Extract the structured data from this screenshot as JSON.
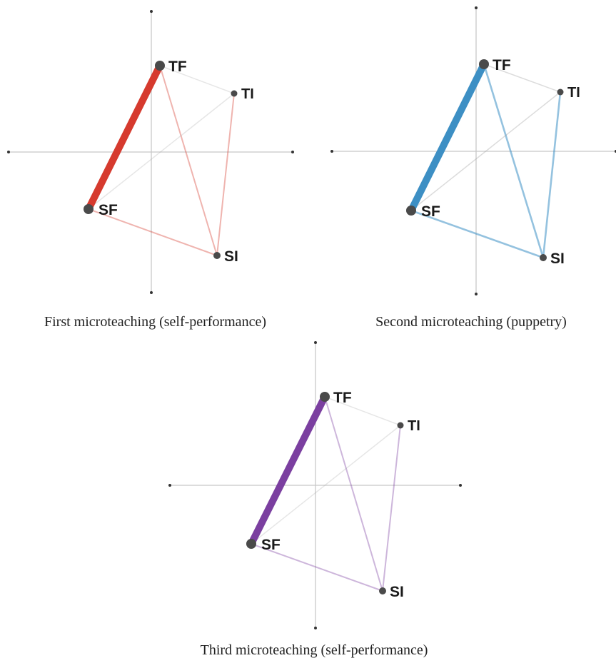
{
  "nodes": [
    {
      "id": "TF",
      "label": "TF"
    },
    {
      "id": "TI",
      "label": "TI"
    },
    {
      "id": "SF",
      "label": "SF"
    },
    {
      "id": "SI",
      "label": "SI"
    }
  ],
  "networks": [
    {
      "caption": "First microteaching (self-performance)",
      "color": "#d63a2e",
      "strong_edge": [
        "TF",
        "SF"
      ],
      "weak_edges": [
        [
          "SF",
          "SI"
        ],
        [
          "TF",
          "SI"
        ],
        [
          "TI",
          "SI"
        ],
        [
          "SF",
          "TI"
        ],
        [
          "TF",
          "TI"
        ]
      ]
    },
    {
      "caption": "Second microteaching (puppetry)",
      "color": "#3d8fc4",
      "strong_edge": [
        "TF",
        "SF"
      ],
      "weak_edges": [
        [
          "SF",
          "SI"
        ],
        [
          "TF",
          "SI"
        ],
        [
          "TI",
          "SI"
        ],
        [
          "SF",
          "TI"
        ],
        [
          "TF",
          "TI"
        ]
      ]
    },
    {
      "caption": "Third microteaching (self-performance)",
      "color": "#7b3fa0",
      "strong_edge": [
        "TF",
        "SF"
      ],
      "weak_edges": [
        [
          "SF",
          "SI"
        ],
        [
          "TF",
          "SI"
        ],
        [
          "TI",
          "SI"
        ],
        [
          "SF",
          "TI"
        ],
        [
          "TF",
          "TI"
        ]
      ]
    }
  ]
}
